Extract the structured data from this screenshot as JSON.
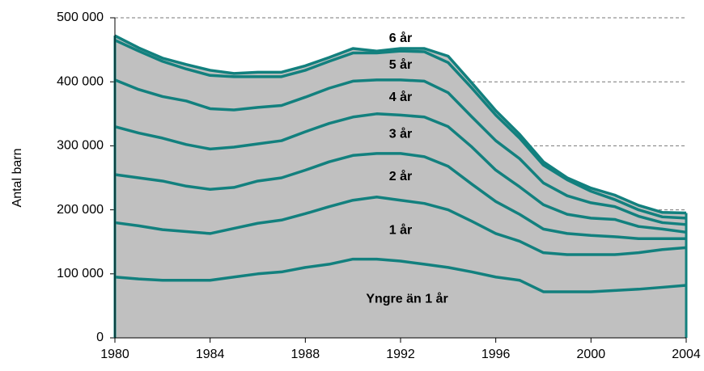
{
  "chart_data": {
    "type": "stacked-area",
    "y_label": "Antal barn",
    "x": [
      1980,
      1981,
      1982,
      1983,
      1984,
      1985,
      1986,
      1987,
      1988,
      1989,
      1990,
      1991,
      1992,
      1993,
      1994,
      1995,
      1996,
      1997,
      1998,
      1999,
      2000,
      2001,
      2002,
      2003,
      2004
    ],
    "xlim": [
      1980,
      2004
    ],
    "xticks": [
      1980,
      1984,
      1988,
      1992,
      1996,
      2000,
      2004
    ],
    "ylim": [
      0,
      500000
    ],
    "yticks": [
      0,
      {
        "value": 100000,
        "label": "100 000"
      },
      {
        "value": 200000,
        "label": "200 000"
      },
      {
        "value": 300000,
        "label": "300 000"
      },
      {
        "value": 400000,
        "label": "400 000"
      },
      {
        "value": 500000,
        "label": "500 000"
      }
    ],
    "grid": true,
    "line_color": "#12807e",
    "series": [
      {
        "name": "Yngre än 1 år",
        "color": "#c0c0c0",
        "values": [
          95000,
          92000,
          90000,
          90000,
          90000,
          95000,
          100000,
          103000,
          110000,
          115000,
          123000,
          123000,
          120000,
          115000,
          110000,
          103000,
          95000,
          90000,
          72000,
          72000,
          72000,
          74000,
          76000,
          79000,
          82000
        ]
      },
      {
        "name": "1 år",
        "color": "#c0c0c0",
        "values": [
          85000,
          83000,
          79000,
          76000,
          73000,
          76000,
          79000,
          81000,
          84000,
          90000,
          92000,
          97000,
          95000,
          95000,
          90000,
          79000,
          68000,
          61000,
          61000,
          58000,
          58000,
          56000,
          57000,
          59000,
          59000
        ]
      },
      {
        "name": "2 år",
        "color": "#c0c0c0",
        "values": [
          75000,
          75000,
          76000,
          71000,
          69000,
          64000,
          66000,
          66000,
          68000,
          70000,
          70000,
          68000,
          73000,
          73000,
          68000,
          58000,
          50000,
          42000,
          37000,
          33000,
          30000,
          28000,
          22000,
          17000,
          14000
        ]
      },
      {
        "name": "3 år",
        "color": "#c0c0c0",
        "values": [
          75000,
          70000,
          67000,
          65000,
          63000,
          63000,
          58000,
          58000,
          60000,
          60000,
          60000,
          62000,
          60000,
          62000,
          62000,
          58000,
          49000,
          43000,
          38000,
          30000,
          27000,
          27000,
          19000,
          15000,
          10000
        ]
      },
      {
        "name": "4 år",
        "color": "#c0c0c0",
        "values": [
          73000,
          68000,
          65000,
          68000,
          63000,
          58000,
          57000,
          55000,
          54000,
          55000,
          56000,
          53000,
          55000,
          56000,
          53000,
          47000,
          46000,
          44000,
          34000,
          29000,
          24000,
          20000,
          16000,
          10000,
          12000
        ]
      },
      {
        "name": "5 år",
        "color": "#c0c0c0",
        "values": [
          62000,
          60000,
          55000,
          50000,
          52000,
          52000,
          48000,
          45000,
          42000,
          42000,
          44000,
          42000,
          45000,
          46000,
          47000,
          45000,
          40000,
          32000,
          28000,
          25000,
          18000,
          11000,
          10000,
          9000,
          10000
        ]
      },
      {
        "name": "6 år",
        "color": "#c0c0c0",
        "values": [
          7000,
          5000,
          5000,
          7000,
          8000,
          5000,
          7000,
          7000,
          7000,
          6000,
          7000,
          3000,
          4000,
          5000,
          10000,
          8000,
          7000,
          6000,
          5000,
          3000,
          5000,
          7000,
          7000,
          7000,
          8000
        ]
      }
    ]
  }
}
